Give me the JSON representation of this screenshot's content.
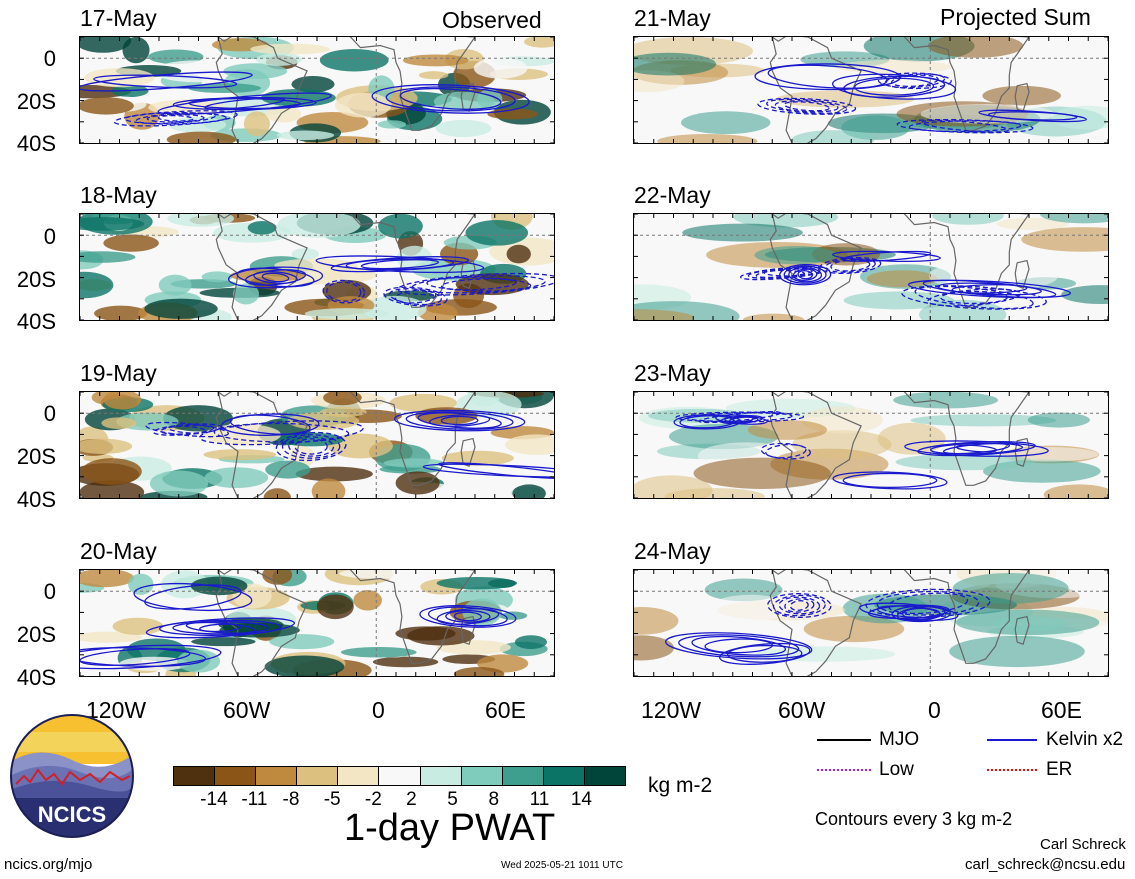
{
  "columns": {
    "left": "Observed",
    "right": "Projected Sum"
  },
  "panels_left": [
    "17-May",
    "18-May",
    "19-May",
    "20-May"
  ],
  "panels_right": [
    "21-May",
    "22-May",
    "23-May",
    "24-May"
  ],
  "lat_labels": [
    "0",
    "20S",
    "40S"
  ],
  "lon_labels": [
    "120W",
    "60W",
    "0",
    "60E"
  ],
  "colorbar": {
    "ticks": [
      "-14",
      "-11",
      "-8",
      "-5",
      "-2",
      "2",
      "5",
      "8",
      "11",
      "14"
    ],
    "colors": [
      "#4f300f",
      "#8b5518",
      "#bf8a3e",
      "#dcc07f",
      "#f2e6c4",
      "#f8f8f8",
      "#c9ece2",
      "#7fcbbc",
      "#3e9f8f",
      "#0c7466",
      "#01443a"
    ],
    "units": "kg m-2",
    "title": "1-day PWAT"
  },
  "legend": {
    "mjo": "MJO",
    "kelvin": "Kelvin x2",
    "low": "Low",
    "er": "ER",
    "colors": {
      "mjo": "#000000",
      "kelvin": "#1a1acc",
      "low": "#a020f0",
      "er": "#dd1111"
    },
    "note": "Contours every 3 kg m-2"
  },
  "logo_text": "NCICS",
  "footer": {
    "left": "ncics.org/mjo",
    "center": "Wed 2025-05-21 1011 UTC",
    "author": "Carl Schreck",
    "email": "carl_schreck@ncsu.edu"
  }
}
